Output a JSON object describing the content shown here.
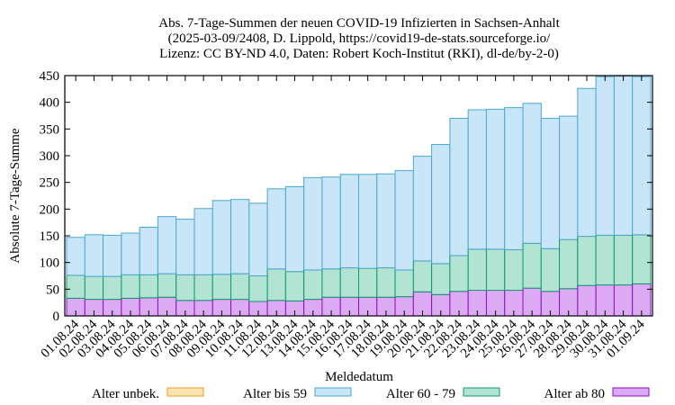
{
  "chart_data": {
    "type": "bar",
    "stacked": true,
    "title": [
      "Abs. 7-Tage-Summen der neuen COVID-19 Infizierten in Sachsen-Anhalt",
      "(2025-03-09/2408, D. Lippold, https://covid19-de-stats.sourceforge.io/",
      "Lizenz: CC BY-ND 4.0, Daten: Robert Koch-Institut (RKI), dl-de/by-2-0)"
    ],
    "xlabel": "Meldedatum",
    "ylabel": "Absolute 7-Tage-Summe",
    "ylim": [
      0,
      450
    ],
    "yticks": [
      0,
      50,
      100,
      150,
      200,
      250,
      300,
      350,
      400,
      450
    ],
    "categories": [
      "01.08.24",
      "02.08.24",
      "03.08.24",
      "04.08.24",
      "05.08.24",
      "06.08.24",
      "07.08.24",
      "08.08.24",
      "09.08.24",
      "10.08.24",
      "11.08.24",
      "12.08.24",
      "13.08.24",
      "14.08.24",
      "15.08.24",
      "16.08.24",
      "17.08.24",
      "18.08.24",
      "19.08.24",
      "20.08.24",
      "21.08.24",
      "22.08.24",
      "23.08.24",
      "24.08.24",
      "25.08.24",
      "26.08.24",
      "27.08.24",
      "28.08.24",
      "29.08.24",
      "30.08.24",
      "31.08.24",
      "01.09.24"
    ],
    "series": [
      {
        "name": "Alter ab 80",
        "fill": "#dcaaf2",
        "stroke": "#8a0fc8",
        "values": [
          33,
          31,
          31,
          33,
          34,
          35,
          29,
          29,
          31,
          31,
          27,
          29,
          28,
          31,
          35,
          35,
          35,
          35,
          36,
          45,
          40,
          46,
          48,
          48,
          48,
          52,
          46,
          51,
          57,
          58,
          58,
          60
        ]
      },
      {
        "name": "Alter 60 - 79",
        "fill": "#b2e3d3",
        "stroke": "#0d9b6b",
        "values": [
          43,
          43,
          43,
          44,
          43,
          44,
          48,
          48,
          47,
          48,
          48,
          59,
          55,
          55,
          53,
          55,
          54,
          55,
          50,
          58,
          58,
          67,
          77,
          77,
          76,
          84,
          80,
          92,
          92,
          93,
          93,
          92
        ]
      },
      {
        "name": "Alter bis 59",
        "fill": "#c9e6f8",
        "stroke": "#4ba7d4",
        "values": [
          71,
          78,
          77,
          78,
          89,
          107,
          104,
          124,
          138,
          139,
          136,
          150,
          159,
          173,
          172,
          175,
          176,
          176,
          186,
          196,
          223,
          257,
          261,
          262,
          266,
          262,
          244,
          231,
          277,
          297,
          298,
          296
        ]
      },
      {
        "name": "Alter unbek.",
        "fill": "#fce4b2",
        "stroke": "#e8a01e",
        "values": [
          0,
          0,
          0,
          0,
          0,
          0,
          0,
          0,
          0,
          0,
          0,
          0,
          0,
          0,
          0,
          0,
          0,
          0,
          0,
          0,
          0,
          0,
          0,
          0,
          0,
          0,
          0,
          0,
          0,
          0,
          0,
          0
        ]
      }
    ],
    "legend": {
      "placement": "bottom",
      "entries": [
        "Alter unbek.",
        "Alter bis 59",
        "Alter 60 - 79",
        "Alter ab 80"
      ]
    }
  }
}
